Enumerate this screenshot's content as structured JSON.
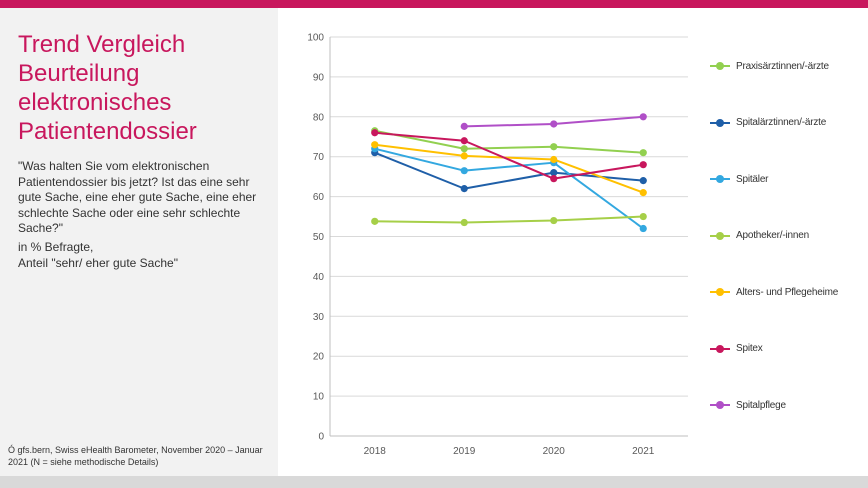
{
  "panel": {
    "title": "Trend Vergleich Beurteilung elektronisches Patientendossier",
    "question": "\"Was halten Sie vom elektronischen Patientendossier bis jetzt? Ist das eine sehr gute Sache, eine eher gute Sache, eine eher schlechte Sache oder eine sehr schlechte Sache?\"",
    "base_line1": "in % Befragte,",
    "base_line2": "Anteil \"sehr/ eher gute Sache\"",
    "source": "Ó gfs.bern, Swiss eHealth Barometer, November 2020 – Januar 2021 (N = siehe methodische Details)"
  },
  "colors": {
    "accent": "#c8175d",
    "panel_bg": "#f2f2f2",
    "grid": "#d9d9d9",
    "axis": "#bfbfbf"
  },
  "chart_data": {
    "type": "line",
    "categories": [
      "2018",
      "2019",
      "2020",
      "2021"
    ],
    "ylim": [
      0,
      100
    ],
    "yticks": [
      0,
      10,
      20,
      30,
      40,
      50,
      60,
      70,
      80,
      90,
      100
    ],
    "grid": "horizontal",
    "legend_position": "right",
    "series": [
      {
        "name": "Praxisärztinnen/-ärzte",
        "color": "#92d050",
        "values": [
          76.5,
          72,
          72.5,
          71
        ]
      },
      {
        "name": "Spitalärztinnen/-ärzte",
        "color": "#1f5fa8",
        "values": [
          71,
          62,
          66,
          64
        ]
      },
      {
        "name": "Spitäler",
        "color": "#33a8e0",
        "values": [
          72,
          66.5,
          68.5,
          52
        ]
      },
      {
        "name": "Apotheker/-innen",
        "color": "#a6cf48",
        "values": [
          53.8,
          53.5,
          54,
          55
        ]
      },
      {
        "name": "Alters- und Pflegeheime",
        "color": "#ffc000",
        "values": [
          73,
          70.2,
          69.3,
          61
        ]
      },
      {
        "name": "Spitex",
        "color": "#c8175d",
        "values": [
          76,
          74,
          64.5,
          68
        ]
      },
      {
        "name": "Spitalpflege",
        "color": "#b04fc7",
        "values": [
          null,
          77.6,
          78.2,
          80
        ]
      }
    ]
  }
}
